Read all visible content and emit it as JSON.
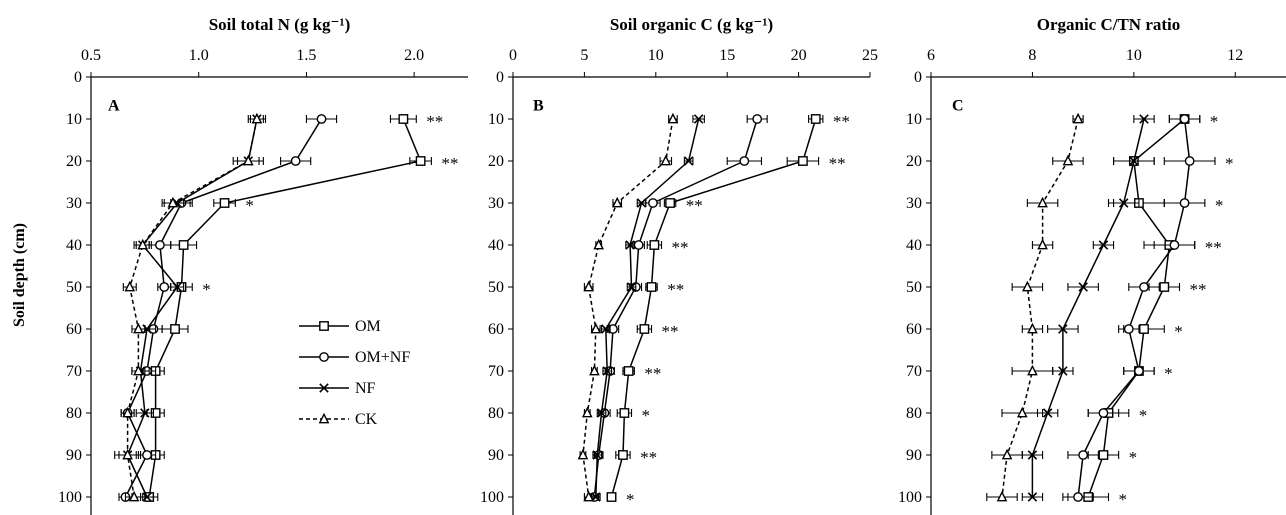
{
  "y_axis_label": "Soil depth (cm)",
  "legend": [
    {
      "label": "OM",
      "marker": "square",
      "dash": false
    },
    {
      "label": "OM+NF",
      "marker": "circle",
      "dash": false
    },
    {
      "label": "NF",
      "marker": "x",
      "dash": false
    },
    {
      "label": "CK",
      "marker": "triangle",
      "dash": true
    }
  ],
  "chart_data": [
    {
      "type": "line",
      "panel": "A",
      "title": "Soil  total N (g kg⁻¹)",
      "xlim": [
        0.5,
        2.25
      ],
      "xticks": [
        "0.5",
        "1.0",
        "1.5",
        "2.0"
      ],
      "xtick_values": [
        0.5,
        1.0,
        1.5,
        2.0
      ],
      "ylim": [
        0,
        100
      ],
      "yticks": [
        "0",
        "10",
        "20",
        "30",
        "40",
        "50",
        "60",
        "70",
        "80",
        "90",
        "100"
      ],
      "ytick_values": [
        0,
        10,
        20,
        30,
        40,
        50,
        60,
        70,
        80,
        90,
        100
      ],
      "depth": [
        10,
        20,
        30,
        40,
        50,
        60,
        70,
        80,
        90,
        100
      ],
      "series": [
        {
          "name": "OM",
          "values": [
            1.95,
            2.03,
            1.12,
            0.93,
            0.92,
            0.89,
            0.8,
            0.8,
            0.8,
            0.77
          ],
          "err": [
            0.06,
            0.05,
            0.05,
            0.06,
            0.05,
            0.06,
            0.04,
            0.04,
            0.04,
            0.04
          ]
        },
        {
          "name": "OM+NF",
          "values": [
            1.57,
            1.45,
            0.92,
            0.82,
            0.84,
            0.79,
            0.76,
            0.67,
            0.76,
            0.66
          ],
          "err": [
            0.07,
            0.07,
            0.05,
            0.05,
            0.03,
            0.04,
            0.04,
            0.03,
            0.04,
            0.03
          ]
        },
        {
          "name": "NF",
          "values": [
            1.27,
            1.23,
            0.9,
            0.74,
            0.9,
            0.76,
            0.73,
            0.75,
            0.67,
            0.76
          ],
          "err": [
            0.04,
            0.07,
            0.06,
            0.03,
            0.03,
            0.04,
            0.04,
            0.04,
            0.04,
            0.03
          ]
        },
        {
          "name": "CK",
          "values": [
            1.27,
            1.23,
            0.88,
            0.74,
            0.68,
            0.72,
            0.72,
            0.67,
            0.67,
            0.7
          ],
          "err": [
            0.03,
            0.05,
            0.05,
            0.04,
            0.03,
            0.03,
            0.03,
            0.03,
            0.06,
            0.04
          ]
        }
      ],
      "significance": [
        "**",
        "**",
        "*",
        "",
        "*",
        "",
        "",
        "",
        "",
        ""
      ]
    },
    {
      "type": "line",
      "panel": "B",
      "title": "Soil organic C (g kg⁻¹)",
      "xlim": [
        0,
        25
      ],
      "xticks": [
        "0",
        "5",
        "10",
        "15",
        "20",
        "25"
      ],
      "xtick_values": [
        0,
        5,
        10,
        15,
        20,
        25
      ],
      "ylim": [
        0,
        100
      ],
      "depth": [
        10,
        20,
        30,
        40,
        50,
        60,
        70,
        80,
        90,
        100
      ],
      "series": [
        {
          "name": "OM",
          "values": [
            21.2,
            20.3,
            11.0,
            9.9,
            9.7,
            9.2,
            8.1,
            7.8,
            7.7,
            6.9
          ],
          "err": [
            0.5,
            1.1,
            0.4,
            0.5,
            0.4,
            0.5,
            0.4,
            0.5,
            0.5,
            0.3
          ]
        },
        {
          "name": "OM+NF",
          "values": [
            17.1,
            16.2,
            9.8,
            8.8,
            8.6,
            7.0,
            6.8,
            6.4,
            6.0,
            5.7
          ],
          "err": [
            0.7,
            1.2,
            0.5,
            0.4,
            0.4,
            0.4,
            0.3,
            0.4,
            0.3,
            0.3
          ]
        },
        {
          "name": "NF",
          "values": [
            13.0,
            12.3,
            9.0,
            8.2,
            8.3,
            6.5,
            6.6,
            6.2,
            5.9,
            5.8
          ],
          "err": [
            0.4,
            0.3,
            0.3,
            0.3,
            0.3,
            0.3,
            0.3,
            0.3,
            0.3,
            0.3
          ]
        },
        {
          "name": "CK",
          "values": [
            11.2,
            10.7,
            7.3,
            6.0,
            5.3,
            5.8,
            5.7,
            5.2,
            4.9,
            5.3
          ],
          "err": [
            0.3,
            0.4,
            0.3,
            0.2,
            0.3,
            0.3,
            0.2,
            0.2,
            0.2,
            0.3
          ]
        }
      ],
      "significance": [
        "**",
        "**",
        "**",
        "**",
        "**",
        "**",
        "**",
        "*",
        "**",
        "*"
      ]
    },
    {
      "type": "line",
      "panel": "C",
      "title": "Organic C/TN ratio",
      "xlim": [
        6,
        13
      ],
      "xticks": [
        "6",
        "8",
        "10",
        "12"
      ],
      "xtick_values": [
        6,
        8,
        10,
        12
      ],
      "ylim": [
        0,
        100
      ],
      "depth": [
        10,
        20,
        30,
        40,
        50,
        60,
        70,
        80,
        90,
        100
      ],
      "series": [
        {
          "name": "OM",
          "values": [
            11.0,
            10.0,
            10.1,
            10.7,
            10.6,
            10.2,
            10.1,
            9.5,
            9.4,
            9.1
          ],
          "err": [
            0.3,
            0.4,
            0.5,
            0.5,
            0.3,
            0.4,
            0.3,
            0.4,
            0.3,
            0.4
          ]
        },
        {
          "name": "OM+NF",
          "values": [
            11.0,
            11.1,
            11.0,
            10.8,
            10.2,
            9.9,
            10.1,
            9.4,
            9.0,
            8.9
          ],
          "err": [
            0.3,
            0.5,
            0.4,
            0.4,
            0.3,
            0.2,
            0.3,
            0.3,
            0.3,
            0.3
          ]
        },
        {
          "name": "NF",
          "values": [
            10.2,
            10.0,
            9.8,
            9.4,
            9.0,
            8.6,
            8.6,
            8.3,
            8.0,
            8.0
          ],
          "err": [
            0.2,
            0.4,
            0.3,
            0.2,
            0.3,
            0.3,
            0.2,
            0.2,
            0.2,
            0.2
          ]
        },
        {
          "name": "CK",
          "values": [
            8.9,
            8.7,
            8.2,
            8.2,
            7.9,
            8.0,
            8.0,
            7.8,
            7.5,
            7.4
          ],
          "err": [
            0.1,
            0.3,
            0.3,
            0.2,
            0.3,
            0.2,
            0.4,
            0.4,
            0.3,
            0.3
          ]
        }
      ],
      "significance": [
        "*",
        "*",
        "*",
        "**",
        "**",
        "*",
        "*",
        "*",
        "*",
        "*"
      ]
    }
  ]
}
